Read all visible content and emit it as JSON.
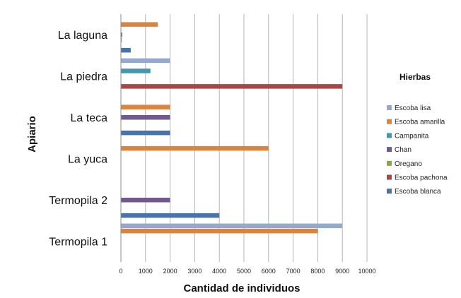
{
  "chart_data": {
    "type": "bar",
    "orientation": "horizontal",
    "title": "",
    "xlabel": "Cantidad de individuos",
    "ylabel": "Apiario",
    "xlim": [
      0,
      10000
    ],
    "x_ticks": [
      0,
      1000,
      2000,
      3000,
      4000,
      5000,
      6000,
      7000,
      8000,
      9000,
      10000
    ],
    "grid": "vertical",
    "legend_title": "Hierbas",
    "legend_placement": "right",
    "categories": [
      "Termopila 1",
      "Termopila 2",
      "La yuca",
      "La teca",
      "La piedra",
      "La laguna"
    ],
    "series": [
      {
        "name": "Escoba blanca",
        "color": "#4A72AB",
        "values": [
          0,
          4000,
          0,
          2000,
          0,
          400
        ]
      },
      {
        "name": "Escoba pachona",
        "color": "#AA4643",
        "values": [
          0,
          0,
          0,
          0,
          9000,
          0
        ]
      },
      {
        "name": "Oregano",
        "color": "#89A54E",
        "values": [
          0,
          0,
          0,
          0,
          0,
          30
        ]
      },
      {
        "name": "Chan",
        "color": "#71588F",
        "values": [
          0,
          2000,
          0,
          2000,
          0,
          50
        ]
      },
      {
        "name": "Campanita",
        "color": "#4198AF",
        "values": [
          0,
          0,
          0,
          0,
          1200,
          0
        ]
      },
      {
        "name": "Escoba amarilla",
        "color": "#DB843D",
        "values": [
          8000,
          0,
          6000,
          2000,
          0,
          1500
        ]
      },
      {
        "name": "Escoba lisa",
        "color": "#93A9CF",
        "values": [
          9000,
          0,
          0,
          0,
          2000,
          0
        ]
      }
    ]
  }
}
